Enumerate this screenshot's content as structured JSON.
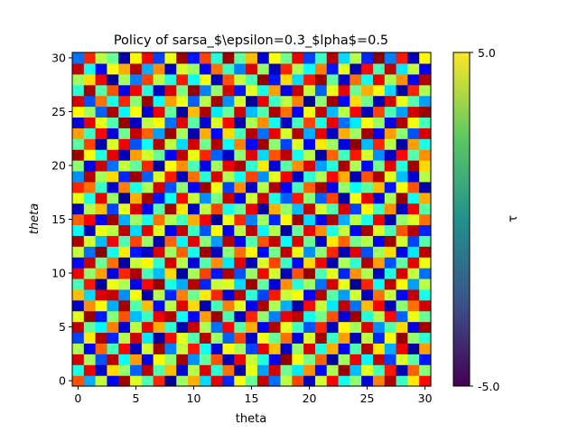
{
  "chart_data": {
    "type": "heatmap",
    "title": "Policy of sarsa_$\\epsilon=0.3_$\u001flpha$=0.5",
    "xlabel": "theta",
    "ylabel": "theta",
    "x_ticks": [
      "0",
      "5",
      "10",
      "15",
      "20",
      "25",
      "30"
    ],
    "y_ticks": [
      "0",
      "5",
      "10",
      "15",
      "20",
      "25",
      "30"
    ],
    "x_range": [
      0,
      30
    ],
    "y_range": [
      0,
      30
    ],
    "grid_size": [
      31,
      31
    ],
    "colorbar": {
      "label": "τ",
      "min": -5.0,
      "max": 5.0,
      "min_label": "-5.0",
      "max_label": "5.0",
      "colormap": "viridis",
      "colors": [
        "#440154",
        "#3b528b",
        "#21918c",
        "#5ec962",
        "#fde725"
      ]
    },
    "cell_colormap": "jet",
    "cell_colormap_colors": [
      "#00007f",
      "#0000ff",
      "#00ffff",
      "#7fff7f",
      "#ffff00",
      "#ff0000",
      "#7f0000"
    ],
    "values_note_source": "cells appear as a noisy pattern of policy values",
    "values": [
      [
        2.8,
        -2.2,
        0.9,
        -3.4,
        4.6,
        1.2,
        -0.7,
        3.1,
        -4.8,
        0.4,
        2.2,
        -1.9,
        3.7,
        -3.1,
        1.6,
        -0.3,
        4.1,
        -2.6,
        0.8,
        2.9,
        -4.2,
        1.1,
        3.4,
        -1.4,
        0.2,
        -3.8,
        2.5,
        4.4,
        -0.9,
        1.8,
        3.3
      ],
      [
        -1.3,
        3.6,
        -4.1,
        1.9,
        0.3,
        -2.7,
        4.2,
        -0.6,
        2.1,
        -3.9,
        0.7,
        3.8,
        -1.1,
        2.6,
        -4.5,
        1.4,
        -2.3,
        3.9,
        -0.2,
        -1.8,
        2.4,
        -3.3,
        0.6,
        4.7,
        -2.1,
        1.3,
        -0.8,
        3.2,
        -4.4,
        2.7,
        0.1
      ],
      [
        3.9,
        0.5,
        -2.8,
        4.3,
        -1.6,
        2.3,
        -3.7,
        1.7,
        0.2,
        4.5,
        -2.4,
        -0.4,
        2.8,
        -4.3,
        3.5,
        0.9,
        -1.2,
        -3.6,
        4.8,
        1.5,
        -0.1,
        2.7,
        -4.6,
        0.4,
        3.6,
        -1.7,
        4.1,
        -2.9,
        1.2,
        -0.5,
        -3.2
      ],
      [
        0.6,
        -3.5,
        2.7,
        -0.8,
        3.3,
        -4.2,
        1.1,
        4.6,
        -2.5,
        0.9,
        3.2,
        -1.5,
        -3.8,
        1.6,
        0.5,
        -2.9,
        3.7,
        2.1,
        -4.1,
        0.3,
        3.8,
        -1.3,
        2.2,
        -3.4,
        -0.7,
        4.3,
        1.8,
        -2.2,
        3.5,
        -4.6,
        2.3
      ],
      [
        -2.9,
        1.8,
        4.4,
        -3.1,
        0.7,
        3.9,
        -1.8,
        -4.5,
        3.3,
        1.3,
        -0.6,
        4.2,
        0.4,
        -2.7,
        2.9,
        -4.1,
        1.5,
        -0.3,
        2.6,
        -3.7,
        1.2,
        4.5,
        -0.9,
        2.3,
        -4.3,
        0.8,
        -3.1,
        1.6,
        4.7,
        0.3,
        -1.1
      ],
      [
        4.2,
        -0.4,
        -1.7,
        2.5,
        -3.8,
        0.8,
        3.6,
        2.2,
        -1.1,
        -4.4,
        4.1,
        0.6,
        -2.6,
        3.4,
        -0.5,
        2.2,
        -3.5,
        4.3,
        1.3,
        -0.8,
        -2.8,
        3.1,
        -4.2,
        1.7,
        0.5,
        3.8,
        -2.4,
        -0.6,
        1.9,
        -3.7,
        4.5
      ],
      [
        1.3,
        4.7,
        -3.2,
        0.1,
        2.8,
        -2.1,
        -0.9,
        3.5,
        4.4,
        -1.6,
        -3.3,
        2.3,
        4.6,
        -0.7,
        -4.2,
        3.1,
        0.2,
        -2.5,
        3.6,
        4.2,
        -1.5,
        -0.2,
        2.8,
        -3.9,
        4.6,
        -1.2,
        0.7,
        3.3,
        -2.7,
        1.4,
        -0.3
      ],
      [
        -4.1,
        2.4,
        1.6,
        -2.2,
        4.5,
        -0.6,
        2.1,
        -3.3,
        0.8,
        3.7,
        1.9,
        -4.3,
        -0.8,
        2.5,
        1.3,
        -3.6,
        4.4,
        0.6,
        -2.2,
        -4.4,
        3.3,
        0.9,
        -1.8,
        4.1,
        -2.6,
        2.1,
        3.4,
        -4.3,
        0.2,
        2.6,
        3.9
      ],
      [
        2.1,
        -1.9,
        3.8,
        4.1,
        -2.4,
        1.6,
        -4.4,
        0.7,
        -3.1,
        2.5,
        -0.2,
        1.8,
        3.1,
        -3.9,
        4.2,
        -1.1,
        -2.9,
        3.2,
        0.9,
        1.6,
        -3.4,
        4.3,
        -0.5,
        -2.3,
        1.1,
        -4.2,
        2.6,
        0.9,
        -3.3,
        4.1,
        -1.4
      ],
      [
        -0.8,
        3.2,
        -4.6,
        1.4,
        0.6,
        -3.6,
        3.3,
        4.7,
        -1.3,
        -2.2,
        4.3,
        -3.1,
        0.9,
        1.2,
        -1.9,
        4.6,
        -0.4,
        -3.8,
        2.4,
        -1.2,
        0.4,
        -2.6,
        3.9,
        1.4,
        -4.7,
        3.1,
        -1.5,
        4.2,
        1.6,
        -2.3,
        0.8
      ],
      [
        3.5,
        0.2,
        2.3,
        -3.7,
        3.1,
        4.4,
        -0.8,
        -2.1,
        1.9,
        -4.6,
        0.5,
        2.9,
        -3.2,
        4.4,
        -2.8,
        0.3,
        3.4,
        1.1,
        -4.3,
        2.8,
        4.7,
        -0.7,
        1.3,
        -3.1,
        2.4,
        0.6,
        -4.1,
        -1.3,
        3.8,
        0.9,
        -2.6
      ],
      [
        -3.3,
        4.1,
        -0.3,
        2.6,
        -4.5,
        0.9,
        1.7,
        -1.1,
        3.9,
        0.7,
        -3.8,
        -0.6,
        2.4,
        -1.8,
        3.7,
        -4.3,
        1.2,
        2.9,
        -0.9,
        -3.3,
        1.9,
        3.4,
        -4.4,
        0.6,
        -1.1,
        4.4,
        2.3,
        -2.8,
        -0.4,
        3.6,
        1.5
      ],
      [
        0.9,
        -2.6,
        4.9,
        -1.5,
        1.8,
        -3.2,
        -4.1,
        3.8,
        0.4,
        2.7,
        -1.4,
        4.5,
        -4.2,
        0.1,
        2.6,
        1.7,
        -3.3,
        -0.2,
        4.2,
        1.4,
        -2.4,
        0.2,
        3.1,
        -4.4,
        3.7,
        -2.8,
        0.4,
        1.9,
        -3.6,
        -1.8,
        4.2
      ],
      [
        4.4,
        1.1,
        -2.1,
        3.4,
        -0.7,
        2.9,
        0.3,
        -4.4,
        2.7,
        -1.7,
        3.6,
        0.1,
        -2.3,
        4.3,
        -3.4,
        -0.6,
        2.8,
        4.1,
        -1.6,
        3.7,
        -0.3,
        -4.1,
        1.8,
        2.7,
        -0.2,
        0.7,
        -3.4,
        4.6,
        1.1,
        -2.9,
        -0.6
      ],
      [
        -1.6,
        -4.3,
        1.4,
        0.8,
        4.2,
        -1.9,
        3.7,
        1.3,
        -3.6,
        4.1,
        -0.9,
        -2.8,
        1.6,
        -3.6,
        0.8,
        4.2,
        -1.7,
        0.7,
        -4.6,
        -0.3,
        3.6,
        2.4,
        -1.3,
        0.9,
        -3.5,
        4.5,
        1.2,
        -0.7,
        2.8,
        4.3,
        -3.1
      ],
      [
        2.7,
        3.4,
        -3.5,
        4.6,
        -2.2,
        0.4,
        -1.4,
        2.6,
        0.6,
        -0.8,
        2.2,
        3.4,
        -4.7,
        1.5,
        3.1,
        -2.5,
        0.5,
        -3.1,
        1.7,
        4.6,
        -1.9,
        -3.5,
        4.4,
        -2.2,
        0.8,
        -1.4,
        3.5,
        -4.4,
        0.3,
        1.2,
        2.6
      ],
      [
        -4.2,
        0.7,
        2.1,
        -2.9,
        1.3,
        3.8,
        -3.6,
        -0.5,
        4.5,
        1.8,
        -4.1,
        0.8,
        2.9,
        -1.4,
        -0.3,
        3.5,
        -4.6,
        2.2,
        0.3,
        -2.1,
        4.1,
        1.1,
        -0.6,
        3.8,
        -2.9,
        1.7,
        -0.9,
        2.4,
        -4.2,
        3.4,
        -0.5
      ],
      [
        1.4,
        -1.3,
        3.6,
        0.3,
        -4.8,
        2.2,
        4.5,
        -3.2,
        -1.5,
        3.3,
        0.9,
        -2.4,
        -0.1,
        4.1,
        -3.7,
        1.1,
        3.9,
        -1.3,
        -2.7,
        3.2,
        0.1,
        -2.7,
        2.9,
        -4.6,
        1.5,
        3.6,
        -3.8,
        0.6,
        4.7,
        -1.5,
        2.2
      ],
      [
        3.1,
        2.6,
        -0.9,
        -4.1,
        2.5,
        -1.3,
        0.6,
        3.9,
        -2.8,
        0.2,
        -3.5,
        4.6,
        1.5,
        -2.9,
        2.4,
        -4.2,
        0.7,
        4.4,
        -3.5,
        -0.7,
        2.7,
        4.5,
        -3.7,
        0.3,
        -1.6,
        -0.4,
        2.1,
        -3.2,
        1.6,
        2.8,
        -4.5
      ],
      [
        -2.4,
        4.3,
        0.5,
        1.9,
        -3.1,
        4.6,
        -2.7,
        1.2,
        3.2,
        -4.3,
        2.6,
        -1.2,
        3.8,
        0.6,
        -1.5,
        2.9,
        -2.4,
        1.3,
        3.4,
        -4.1,
        -1.1,
        0.6,
        3.3,
        2.2,
        -4.3,
        2.8,
        4.4,
        1.3,
        -2.1,
        -3.9,
        0.7
      ],
      [
        0.2,
        -3.7,
        4.1,
        -2.6,
        0.9,
        -0.4,
        3.1,
        -4.6,
        1.6,
        2.4,
        -0.7,
        -3.6,
        0.4,
        3.6,
        4.4,
        -1.1,
        1.8,
        -3.9,
        -0.5,
        2.4,
        3.8,
        -2.3,
        -1.2,
        4.4,
        0.6,
        -3.3,
        -0.2,
        3.7,
        -1.2,
        4.6,
        1.9
      ],
      [
        4.6,
        1.5,
        -1.2,
        3.7,
        -4.3,
        2.3,
        1.1,
        -0.3,
        -3.5,
        4.2,
        1.4,
        3.1,
        -2.7,
        -4.1,
        0.2,
        3.7,
        -1.9,
        2.8,
        4.2,
        -1.5,
        0.7,
        -4.5,
        2.7,
        -0.8,
        3.2,
        1.1,
        -2.4,
        -4.1,
        3.3,
        -0.6,
        2.4
      ],
      [
        -0.5,
        2.9,
        -4.4,
        1.2,
        3.5,
        -2.8,
        -1.6,
        4.3,
        0.8,
        -1.9,
        3.9,
        -0.2,
        4.3,
        -1.6,
        2.5,
        -3.3,
        4.6,
        0.2,
        -2.9,
        1.2,
        -3.4,
        1.8,
        0.4,
        -3.7,
        4.8,
        -2.1,
        3.1,
        0.8,
        -4.6,
        2.3,
        -1.3
      ],
      [
        2.3,
        -0.9,
        3.3,
        -3.9,
        -0.2,
        4.1,
        2.7,
        -2.3,
        4.6,
        0.5,
        -4.4,
        2.2,
        -3.3,
        1.9,
        -0.8,
        4.3,
        -2.6,
        3.6,
        1.1,
        4.3,
        -2.2,
        3.6,
        -4.1,
        2.2,
        0.4,
        4.5,
        -3.6,
        2.3,
        0.2,
        -2.8,
        3.8
      ],
      [
        -3.8,
        3.7,
        1.3,
        -0.6,
        4.7,
        -4.1,
        0.8,
        1.7,
        -2.6,
        3.6,
        -0.5,
        -3.9,
        1.2,
        3.3,
        -4.4,
        0.6,
        2.4,
        -1.5,
        -4.2,
        -0.8,
        2.9,
        -1.3,
        3.6,
        -2.6,
        -1.8,
        1.6,
        0.3,
        -3.7,
        4.4,
        1.6,
        -0.8
      ],
      [
        1.7,
        0.4,
        -2.7,
        4.4,
        -1.7,
        1.6,
        -3.9,
        3.5,
        -0.4,
        -4.6,
        2.1,
        4.4,
        -1.8,
        -0.3,
        3.9,
        -2.1,
        -0.6,
        4.4,
        2.6,
        -3.4,
        1.5,
        4.1,
        -2.1,
        0.8,
        3.4,
        -4.3,
        2.9,
        -0.7,
        -2.3,
        3.9,
        4.6
      ],
      [
        3.8,
        -2.8,
        2.6,
        -1.4,
        3.1,
        0.1,
        4.6,
        -1.6,
        2.3,
        1.4,
        -2.7,
        0.7,
        4.5,
        -2.4,
        1.1,
        -4.7,
        3.5,
        -0.9,
        0.8,
        2.5,
        -4.8,
        0.2,
        4.6,
        -3.3,
        1.9,
        -0.2,
        -4.2,
        3.9,
        1.4,
        -0.6,
        -2.3
      ],
      [
        -1.1,
        4.5,
        -0.6,
        2.8,
        -3.6,
        3.4,
        -1.2,
        -4.1,
        3.8,
        -0.1,
        4.7,
        -2.5,
        0.3,
        3.9,
        -3.2,
        1.3,
        -1.4,
        2.3,
        -3.6,
        4.1,
        0.9,
        -2.7,
        1.4,
        3.6,
        -0.3,
        2.2,
        1.6,
        -1.9,
        -4.5,
        3.1,
        0.6
      ],
      [
        0.4,
        1.9,
        3.5,
        -4.7,
        0.5,
        -2.5,
        2.9,
        0.8,
        -1.2,
        3.2,
        -1.5,
        1.6,
        -4.3,
        2.8,
        0.9,
        -0.7,
        4.7,
        -3.2,
        1.9,
        -1.9,
        3.2,
        4.7,
        -0.4,
        -4.1,
        2.6,
        -1.5,
        3.6,
        0.5,
        2.4,
        -3.4,
        4.3
      ],
      [
        4.1,
        -1.5,
        -3.3,
        1.6,
        2.2,
        4.3,
        -2.2,
        2.4,
        -4.2,
        1.1,
        0.4,
        -3.4,
        2.6,
        -0.9,
        -2.5,
        3.8,
        0.3,
        -4.3,
        3.1,
        0.6,
        -1.6,
        2.5,
        -3.2,
        1.3,
        -4.3,
        3.3,
        -0.7,
        4.2,
        -1.8,
        0.9,
        -3.5
      ],
      [
        -2.6,
        3.1,
        0.8,
        -0.3,
        -4.4,
        1.7,
        3.4,
        -2.9,
        1.5,
        4.6,
        -3.2,
        2.9,
        -1.2,
        4.6,
        -0.4,
        2.1,
        -3.8,
        1.6,
        -0.2,
        3.5,
        -2.9,
        -0.9,
        4.3,
        -1.9,
        0.7,
        -3.1,
        4.8,
        -2.5,
        3.2,
        -4.2,
        1.7
      ]
    ]
  }
}
